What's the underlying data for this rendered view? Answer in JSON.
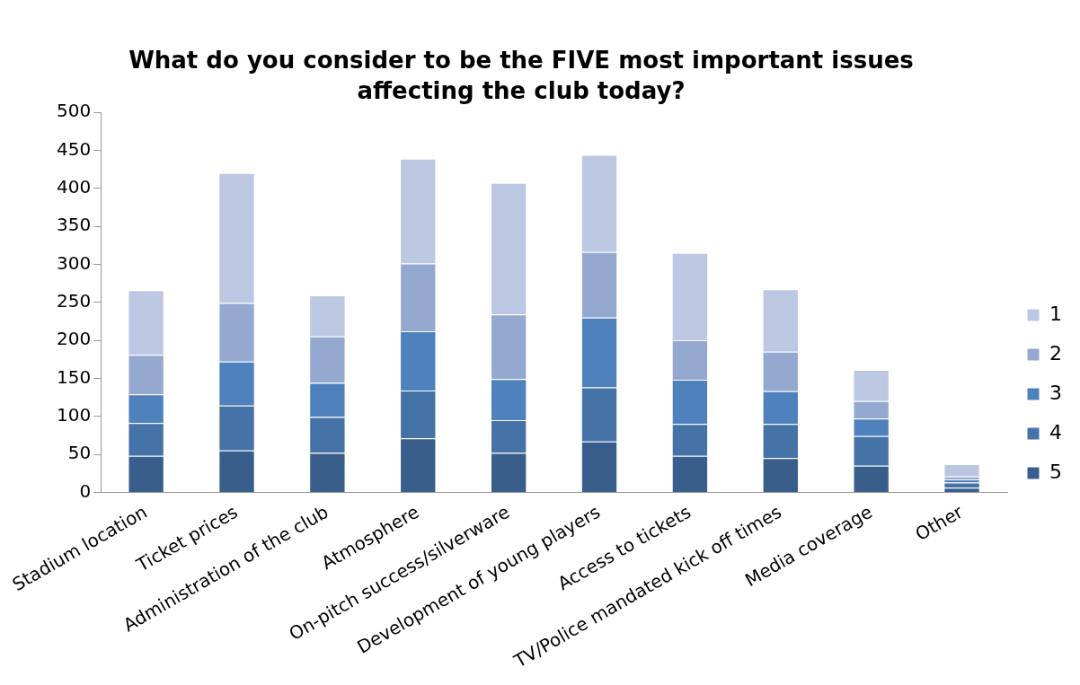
{
  "chart_data": {
    "type": "bar",
    "stacked": true,
    "title": "What do you consider to be the FIVE most important issues affecting the club today?",
    "categories": [
      "Stadium location",
      "Ticket prices",
      "Administration of the club",
      "Atmosphere",
      "On-pitch success/silverware",
      "Development of young players",
      "Access to tickets",
      "TV/Police mandated kick off times",
      "Media coverage",
      "Other"
    ],
    "series": [
      {
        "name": "5",
        "color": "#3a5e8c",
        "values": [
          48,
          55,
          52,
          71,
          52,
          67,
          48,
          45,
          35,
          6
        ]
      },
      {
        "name": "4",
        "color": "#4572a7",
        "values": [
          43,
          59,
          47,
          63,
          43,
          71,
          42,
          45,
          39,
          7
        ]
      },
      {
        "name": "3",
        "color": "#4f81bd",
        "values": [
          38,
          58,
          45,
          78,
          54,
          92,
          58,
          43,
          23,
          4
        ]
      },
      {
        "name": "2",
        "color": "#95a9d0",
        "values": [
          52,
          77,
          61,
          89,
          85,
          86,
          52,
          52,
          23,
          4
        ]
      },
      {
        "name": "1",
        "color": "#bcc8e1",
        "values": [
          85,
          171,
          54,
          138,
          173,
          128,
          115,
          82,
          41,
          16
        ]
      }
    ],
    "ylim": [
      0,
      500
    ],
    "yticks": [
      0,
      50,
      100,
      150,
      200,
      250,
      300,
      350,
      400,
      450,
      500
    ],
    "grid": false,
    "legend": "right"
  }
}
